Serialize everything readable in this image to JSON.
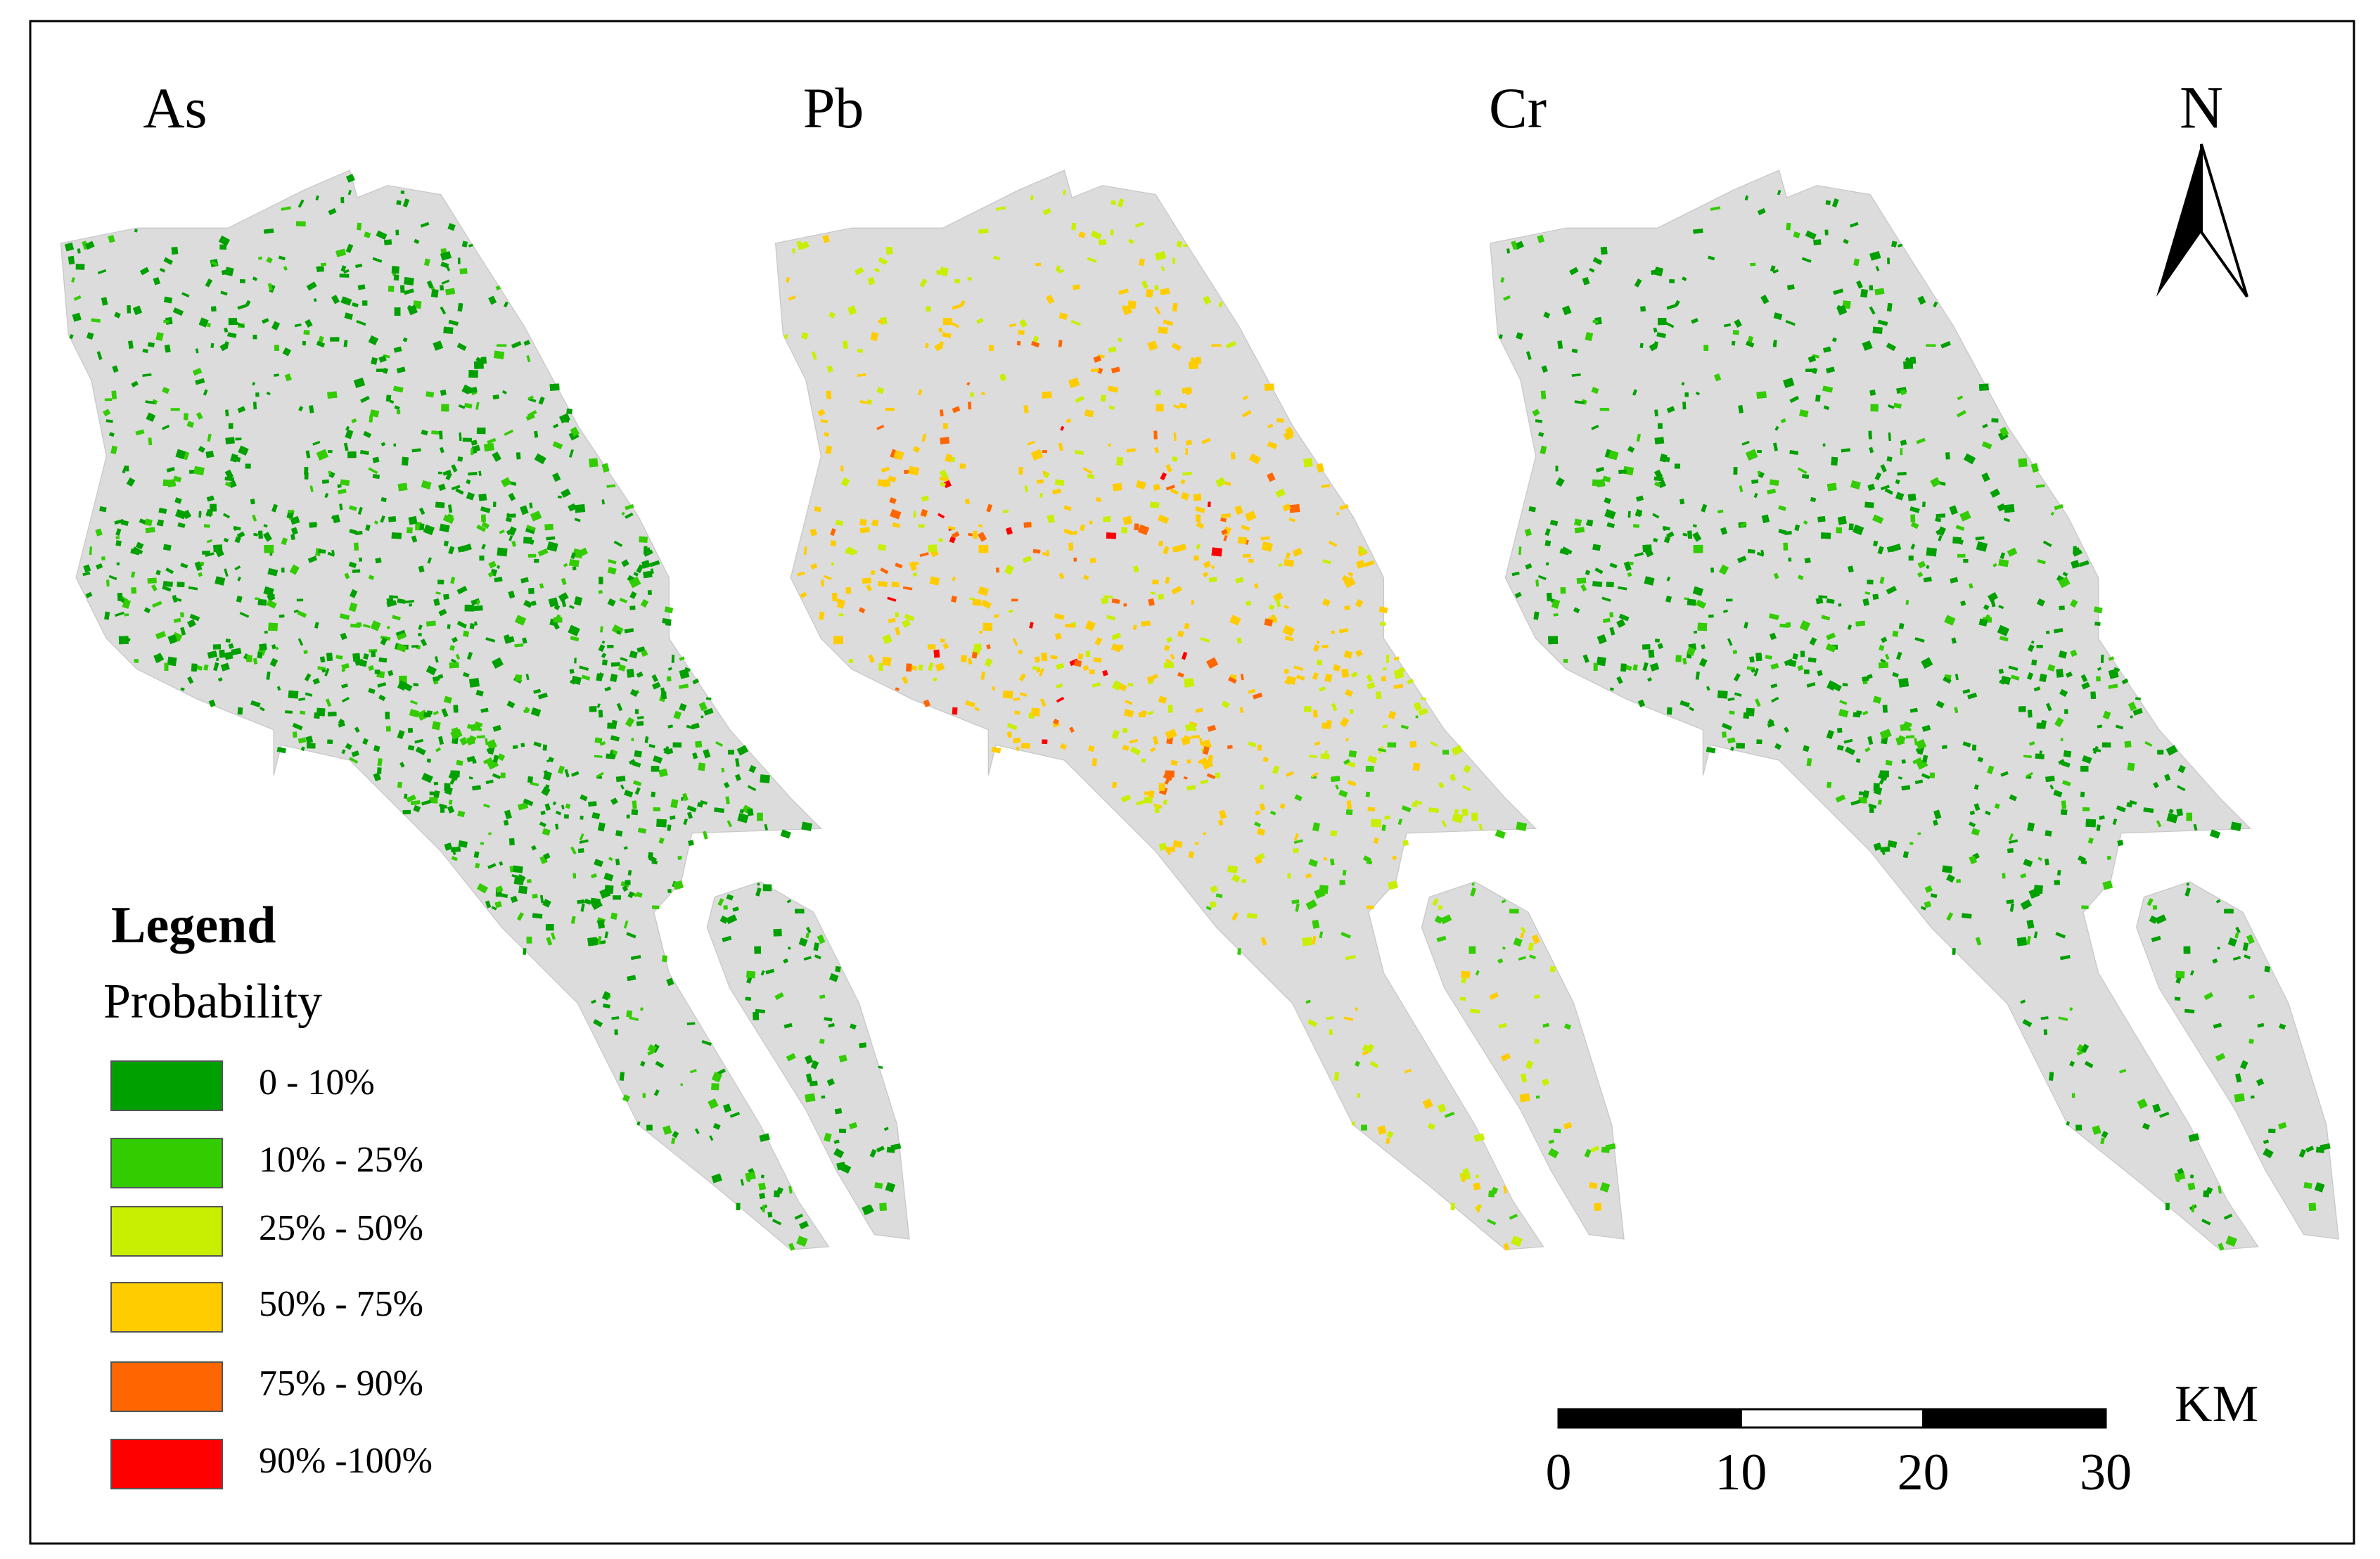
{
  "panels": [
    {
      "title": "As"
    },
    {
      "title": "Pb"
    },
    {
      "title": "Cr"
    }
  ],
  "legend": {
    "title": "Legend",
    "subtitle": "Probability",
    "items": [
      {
        "label": "0 - 10%",
        "color": "#00a000"
      },
      {
        "label": "10% - 25%",
        "color": "#33cc00"
      },
      {
        "label": "25% - 50%",
        "color": "#c8ef00"
      },
      {
        "label": "50% - 75%",
        "color": "#ffcc00"
      },
      {
        "label": "75% - 90%",
        "color": "#ff6600"
      },
      {
        "label": "90% -100%",
        "color": "#ff0000"
      }
    ]
  },
  "north_arrow": {
    "label": "N"
  },
  "scale_bar": {
    "ticks": [
      0,
      10,
      20,
      30
    ],
    "unit": "KM"
  }
}
